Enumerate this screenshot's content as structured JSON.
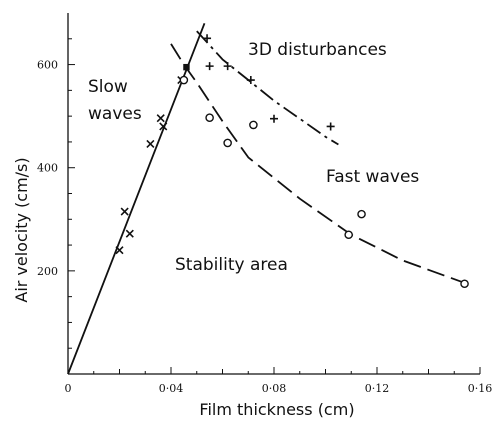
{
  "chart_data": {
    "type": "scatter",
    "xlabel": "Film thickness (cm)",
    "ylabel": "Air velocity (cm/s)",
    "xlim": [
      0,
      0.16
    ],
    "ylim": [
      0,
      700
    ],
    "x_ticks": [
      0,
      0.04,
      0.08,
      0.12,
      0.16
    ],
    "x_tick_labels": [
      "0",
      "0·04",
      "0·08",
      "0·12",
      "0·16"
    ],
    "y_ticks": [
      200,
      400,
      600
    ],
    "y_tick_labels": [
      "200",
      "400",
      "600"
    ],
    "grid": false,
    "annotations": [
      "Slow waves",
      "3D disturbances",
      "Fast waves",
      "Stability area"
    ],
    "series": [
      {
        "marker": "x",
        "points": [
          [
            0.02,
            240
          ],
          [
            0.022,
            315
          ],
          [
            0.024,
            272
          ],
          [
            0.032,
            446
          ],
          [
            0.036,
            496
          ],
          [
            0.037,
            480
          ],
          [
            0.044,
            570
          ]
        ]
      },
      {
        "marker": "+",
        "points": [
          [
            0.054,
            651
          ],
          [
            0.055,
            597
          ],
          [
            0.062,
            597
          ],
          [
            0.071,
            570
          ],
          [
            0.08,
            495
          ],
          [
            0.102,
            480
          ]
        ]
      },
      {
        "marker": "o",
        "points": [
          [
            0.045,
            570
          ],
          [
            0.055,
            497
          ],
          [
            0.062,
            448
          ],
          [
            0.072,
            483
          ],
          [
            0.109,
            270
          ],
          [
            0.114,
            310
          ],
          [
            0.154,
            175
          ]
        ]
      },
      {
        "marker": "square",
        "points": [
          [
            0.046,
            595
          ]
        ]
      }
    ],
    "curves": [
      {
        "style": "solid",
        "points": [
          [
            0,
            0
          ],
          [
            0.053,
            680
          ]
        ]
      },
      {
        "style": "dash-dot",
        "points": [
          [
            0.05,
            665
          ],
          [
            0.06,
            610
          ],
          [
            0.07,
            570
          ],
          [
            0.08,
            530
          ],
          [
            0.09,
            495
          ],
          [
            0.1,
            460
          ],
          [
            0.105,
            445
          ]
        ]
      },
      {
        "style": "dashed",
        "points": [
          [
            0.04,
            640
          ],
          [
            0.045,
            600
          ],
          [
            0.05,
            565
          ],
          [
            0.06,
            490
          ],
          [
            0.07,
            420
          ],
          [
            0.09,
            340
          ],
          [
            0.11,
            270
          ],
          [
            0.13,
            220
          ],
          [
            0.155,
            175
          ]
        ]
      }
    ]
  }
}
